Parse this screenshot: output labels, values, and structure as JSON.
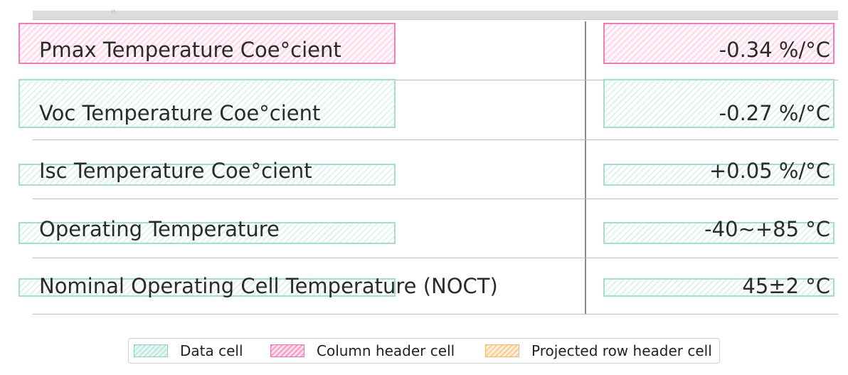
{
  "table": {
    "rows": [
      {
        "label": "Pmax Temperature Coe°cient",
        "value": "-0.34 %/°C",
        "cell_type": "column-header"
      },
      {
        "label": "Voc Temperature Coe°cient",
        "value": "-0.27 %/°C",
        "cell_type": "data"
      },
      {
        "label": "Isc Temperature Coe°cient",
        "value": "+0.05 %/°C",
        "cell_type": "data"
      },
      {
        "label": "Operating Temperature",
        "value": "-40~+85 °C",
        "cell_type": "data"
      },
      {
        "label": "Nominal Operating Cell Temperature (NOCT)",
        "value": "45±2 °C",
        "cell_type": "data"
      }
    ]
  },
  "legend": {
    "data_cell": "Data cell",
    "column_header_cell": "Column header cell",
    "projected_row_header_cell": "Projected row header cell"
  },
  "colors": {
    "data_cell": "#a7dcd2",
    "column_header_cell": "#f07fb7",
    "projected_row_header_cell": "#f3b86c"
  }
}
